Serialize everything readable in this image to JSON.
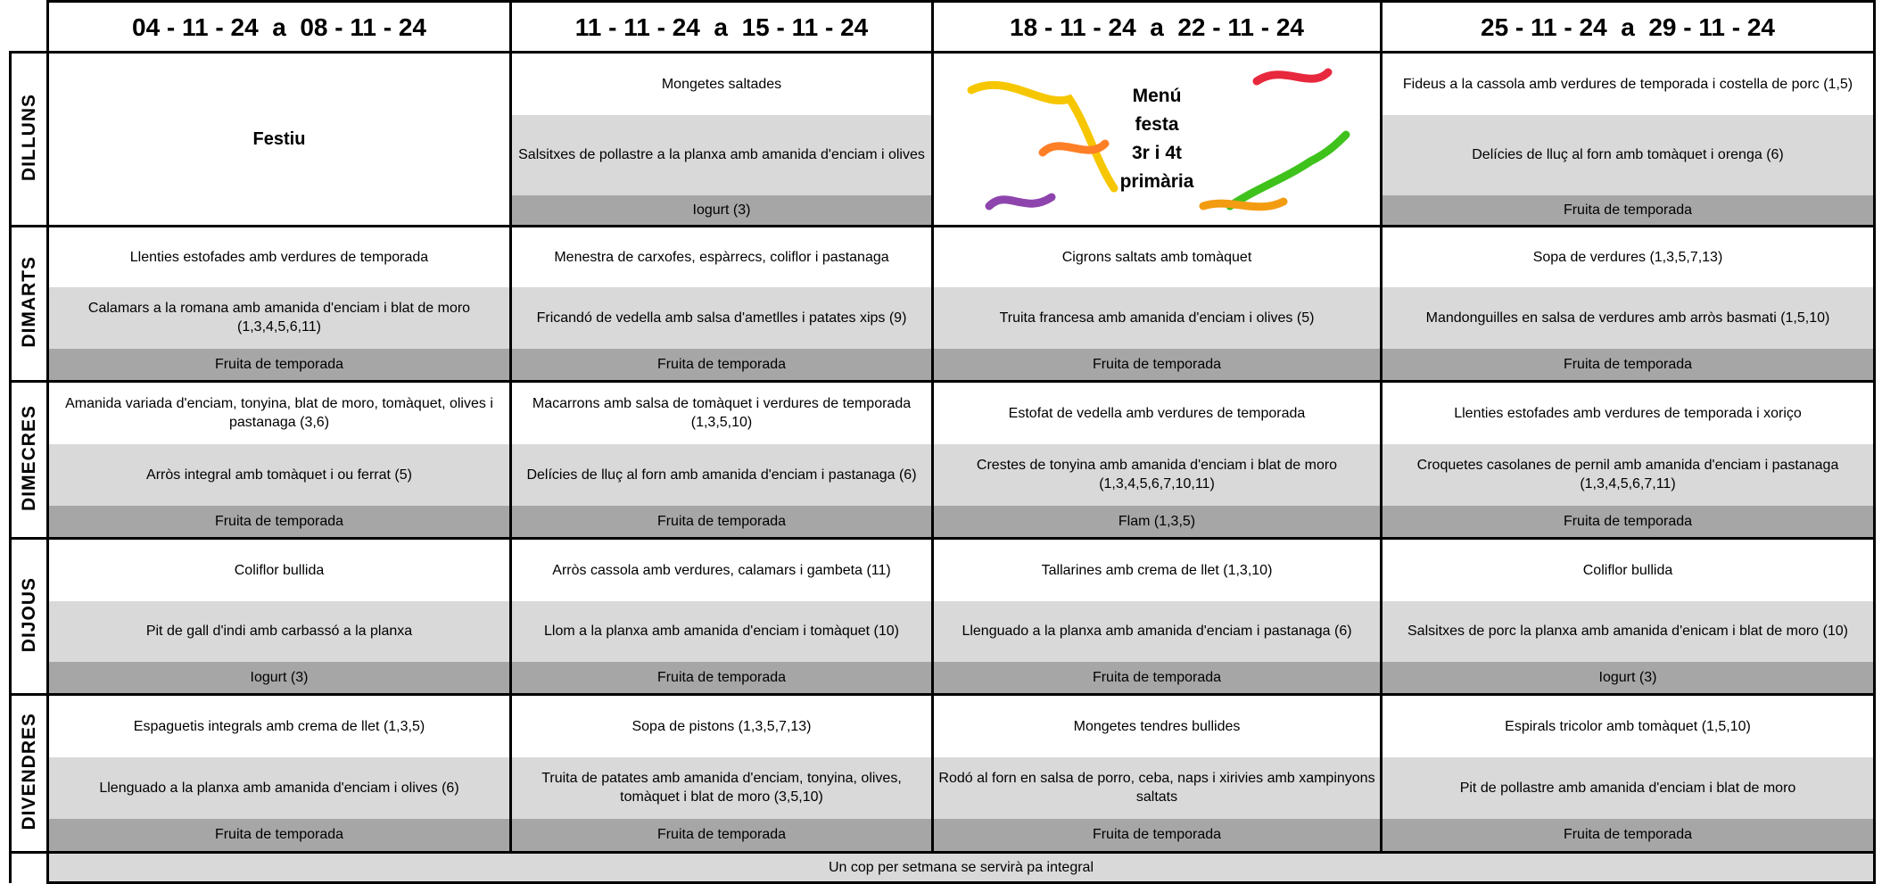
{
  "header": {
    "weeks": [
      "04 - 11 - 24  a  08 - 11 - 24",
      "11 - 11 - 24  a  15 - 11 - 24",
      "18 - 11 - 24  a  22 - 11 - 24",
      "25 - 11 - 24  a  29 - 11 - 24"
    ]
  },
  "days": [
    {
      "name": "DILLUNS",
      "cells": [
        {
          "note": [
            "Festiu"
          ]
        },
        [
          "Mongetes saltades",
          "Salsitxes de pollastre a la planxa amb amanida d'enciam i olives",
          "Iogurt (3)"
        ],
        {
          "note": [
            "Menú",
            "festa",
            "3r i 4t",
            "primària"
          ]
        },
        [
          "Fideus a la cassola amb verdures de temporada i costella de porc (1,5)",
          "Delícies de lluç al forn amb tomàquet i orenga (6)",
          "Fruita de temporada"
        ]
      ]
    },
    {
      "name": "DIMARTS",
      "cells": [
        [
          "Llenties estofades amb verdures de temporada",
          "Calamars a la romana amb amanida d'enciam i blat de moro (1,3,4,5,6,11)",
          "Fruita de temporada"
        ],
        [
          "Menestra de  carxofes, espàrrecs, coliflor i pastanaga",
          "Fricandó de vedella amb salsa d'ametlles i patates xips (9)",
          "Fruita de temporada"
        ],
        [
          "Cigrons saltats amb tomàquet",
          "Truita francesa amb amanida d'enciam i olives (5)",
          "Fruita de temporada"
        ],
        [
          "Sopa de verdures (1,3,5,7,13)",
          "Mandonguilles en salsa de verdures amb arròs basmati (1,5,10)",
          "Fruita de temporada"
        ]
      ]
    },
    {
      "name": "DIMECRES",
      "cells": [
        [
          "Amanida variada d'enciam, tonyina, blat de moro, tomàquet, olives i pastanaga (3,6)",
          "Arròs integral amb tomàquet i ou ferrat (5)",
          "Fruita de temporada"
        ],
        [
          "Macarrons amb salsa de tomàquet i verdures de temporada (1,3,5,10)",
          "Delícies de lluç al forn amb amanida d'enciam i pastanaga (6)",
          "Fruita de temporada"
        ],
        [
          "Estofat de vedella amb verdures de temporada",
          "Crestes de tonyina amb amanida d'enciam i blat de moro (1,3,4,5,6,7,10,11)",
          "Flam (1,3,5)"
        ],
        [
          "Llenties estofades amb verdures de temporada i xoriço",
          "Croquetes casolanes de pernil amb amanida d'enciam i pastanaga (1,3,4,5,6,7,11)",
          "Fruita de temporada"
        ]
      ]
    },
    {
      "name": "DIJOUS",
      "cells": [
        [
          "Coliflor bullida",
          "Pit de gall d'indi amb carbassó a la planxa",
          "Iogurt (3)"
        ],
        [
          "Arròs cassola amb verdures, calamars i gambeta (11)",
          "Llom a la planxa amb amanida d'enciam i tomàquet (10)",
          "Fruita de temporada"
        ],
        [
          "Tallarines amb crema de llet (1,3,10)",
          "Llenguado a la planxa amb amanida d'enciam i pastanaga (6)",
          "Fruita de temporada"
        ],
        [
          "Coliflor bullida",
          "Salsitxes de porc la planxa amb amanida d'enicam i blat de moro (10)",
          "Iogurt (3)"
        ]
      ]
    },
    {
      "name": "DIVENDRES",
      "cells": [
        [
          "Espaguetis integrals amb crema de llet (1,3,5)",
          "Llenguado a la planxa amb amanida d'enciam i olives (6)",
          "Fruita de temporada"
        ],
        [
          "Sopa de pistons (1,3,5,7,13)",
          "Truita de patates amb amanida d'enciam, tonyina, olives, tomàquet i blat de moro (3,5,10)",
          "Fruita de temporada"
        ],
        [
          "Mongetes tendres bullides",
          "Rodó al forn en salsa de porro, ceba, naps i xirivies amb xampinyons saltats",
          "Fruita de temporada"
        ],
        [
          "Espirals tricolor amb tomàquet (1,5,10)",
          "Pit de pollastre amb amanida d'enciam i blat de moro",
          "Fruita de temporada"
        ]
      ]
    }
  ],
  "footer": "Un cop per setmana se servirà pa integral"
}
